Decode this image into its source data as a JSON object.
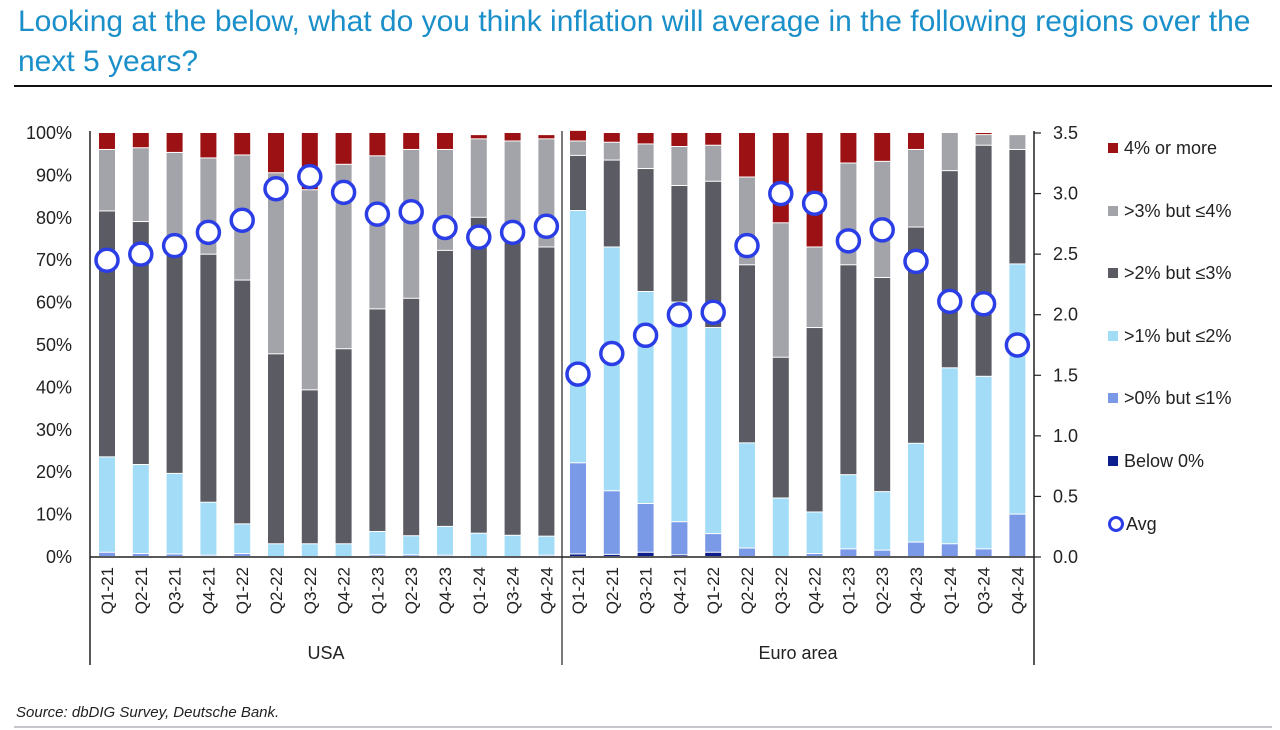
{
  "title": "Looking at the below, what do you think inflation will average in the following regions over the next 5 years?",
  "source": "Source: dbDIG Survey, Deutsche Bank.",
  "chart_data": {
    "type": "bar",
    "stacked": true,
    "percent_stacked": true,
    "title": "Looking at the below, what do you think inflation will average in the following regions over the next 5 years?",
    "left_axis": {
      "label": "",
      "ylim": [
        0,
        100
      ],
      "ticks": [
        "0%",
        "10%",
        "20%",
        "30%",
        "40%",
        "50%",
        "60%",
        "70%",
        "80%",
        "90%",
        "100%"
      ]
    },
    "right_axis": {
      "label": "",
      "ylim": [
        0,
        3.5
      ],
      "ticks": [
        "0.0",
        "0.5",
        "1.0",
        "1.5",
        "2.0",
        "2.5",
        "3.0",
        "3.5"
      ]
    },
    "grid": false,
    "legend_position": "right",
    "groups": [
      {
        "name": "USA",
        "categories": [
          "Q1-21",
          "Q2-21",
          "Q3-21",
          "Q4-21",
          "Q1-22",
          "Q2-22",
          "Q3-22",
          "Q4-22",
          "Q1-23",
          "Q2-23",
          "Q4-23",
          "Q1-24",
          "Q3-24",
          "Q4-24"
        ]
      },
      {
        "name": "Euro area",
        "categories": [
          "Q1-21",
          "Q2-21",
          "Q3-21",
          "Q4-21",
          "Q1-22",
          "Q2-22",
          "Q3-22",
          "Q4-22",
          "Q1-23",
          "Q2-23",
          "Q4-23",
          "Q1-24",
          "Q3-24",
          "Q4-24"
        ]
      }
    ],
    "series": [
      {
        "name": "Below 0%",
        "color": "#0d1f8c",
        "axis": "left",
        "usa": [
          0,
          0,
          0,
          0,
          0,
          0,
          0,
          0,
          0,
          0,
          0,
          0,
          0,
          0
        ],
        "euro": [
          0.6,
          0.5,
          1.0,
          0.4,
          1.0,
          0,
          0,
          0,
          0,
          0,
          0,
          0,
          0,
          0
        ]
      },
      {
        "name": ">0% but ≤1%",
        "color": "#7a9ae8",
        "axis": "left",
        "usa": [
          1.0,
          0.7,
          0.6,
          0.3,
          0.7,
          0,
          0,
          0,
          0.4,
          0.4,
          0.3,
          0,
          0,
          0.3
        ],
        "euro": [
          21.5,
          15.0,
          11.5,
          7.8,
          4.4,
          2.0,
          0,
          0.7,
          1.8,
          1.5,
          3.4,
          3.0,
          1.8,
          10.0
        ]
      },
      {
        "name": ">1% but ≤2%",
        "color": "#a3dcf7",
        "axis": "left",
        "usa": [
          22.5,
          21.0,
          19.0,
          12.5,
          7.0,
          3.0,
          3.0,
          3.0,
          5.5,
          4.5,
          6.8,
          5.5,
          5.0,
          4.5
        ],
        "euro": [
          59.5,
          57.5,
          50.0,
          51.8,
          48.6,
          24.8,
          13.8,
          9.8,
          17.5,
          13.8,
          23.3,
          41.5,
          40.7,
          59.0
        ]
      },
      {
        "name": ">2% but ≤3%",
        "color": "#5b5b63",
        "axis": "left",
        "usa": [
          58.0,
          57.3,
          52.5,
          58.5,
          57.5,
          44.8,
          36.3,
          46.0,
          52.5,
          56.0,
          65.1,
          74.5,
          72.5,
          68.2
        ]
      },
      {
        "name": ">3% but ≤4%",
        "color": "#a3a3aa",
        "axis": "left",
        "usa": [
          14.5,
          17.4,
          23.2,
          22.7,
          29.5,
          42.7,
          47.2,
          43.5,
          36.1,
          35.1,
          23.8,
          18.5,
          20.5,
          25.5
        ]
      },
      {
        "name": "4% or more",
        "color": "#9c1113",
        "axis": "left",
        "usa": [
          4.0,
          3.6,
          4.7,
          6.0,
          5.3,
          9.5,
          13.5,
          7.5,
          5.5,
          4.0,
          4.0,
          1.0,
          2.0,
          1.0
        ]
      }
    ],
    "euro_extra": {
      ">2% but ≤3%": [
        13.0,
        20.5,
        29.0,
        27.5,
        34.5,
        42.0,
        33.2,
        43.5,
        49.5,
        50.5,
        51.0,
        46.5,
        54.5,
        27.0
      ],
      ">3% but ≤4%": [
        3.4,
        4.2,
        5.8,
        9.2,
        8.5,
        20.7,
        31.7,
        19.0,
        24.0,
        27.4,
        18.3,
        9.0,
        2.5,
        3.5
      ],
      "4% or more": [
        2.5,
        2.3,
        2.7,
        3.3,
        3.0,
        10.5,
        21.3,
        27.0,
        7.2,
        6.8,
        4.0,
        0,
        0.5,
        0
      ]
    },
    "avg": {
      "name": "Avg",
      "color": "#2b3ee6",
      "axis": "right",
      "usa": [
        2.45,
        2.5,
        2.57,
        2.68,
        2.78,
        3.04,
        3.14,
        3.01,
        2.83,
        2.85,
        2.72,
        2.64,
        2.68,
        2.73
      ],
      "euro": [
        1.51,
        1.68,
        1.83,
        2.0,
        2.02,
        2.57,
        3.0,
        2.92,
        2.61,
        2.7,
        2.44,
        2.11,
        2.09,
        1.75
      ]
    }
  },
  "legend": [
    {
      "label": "4% or more",
      "color": "#9c1113",
      "kind": "square"
    },
    {
      "label": ">3% but ≤4%",
      "color": "#a3a3aa",
      "kind": "square"
    },
    {
      "label": ">2% but ≤3%",
      "color": "#5b5b63",
      "kind": "square"
    },
    {
      "label": ">1% but ≤2%",
      "color": "#a3dcf7",
      "kind": "square"
    },
    {
      "label": ">0% but ≤1%",
      "color": "#7a9ae8",
      "kind": "square"
    },
    {
      "label": "Below 0%",
      "color": "#0d1f8c",
      "kind": "square"
    },
    {
      "label": "Avg",
      "color": "#2b3ee6",
      "kind": "circle"
    }
  ]
}
